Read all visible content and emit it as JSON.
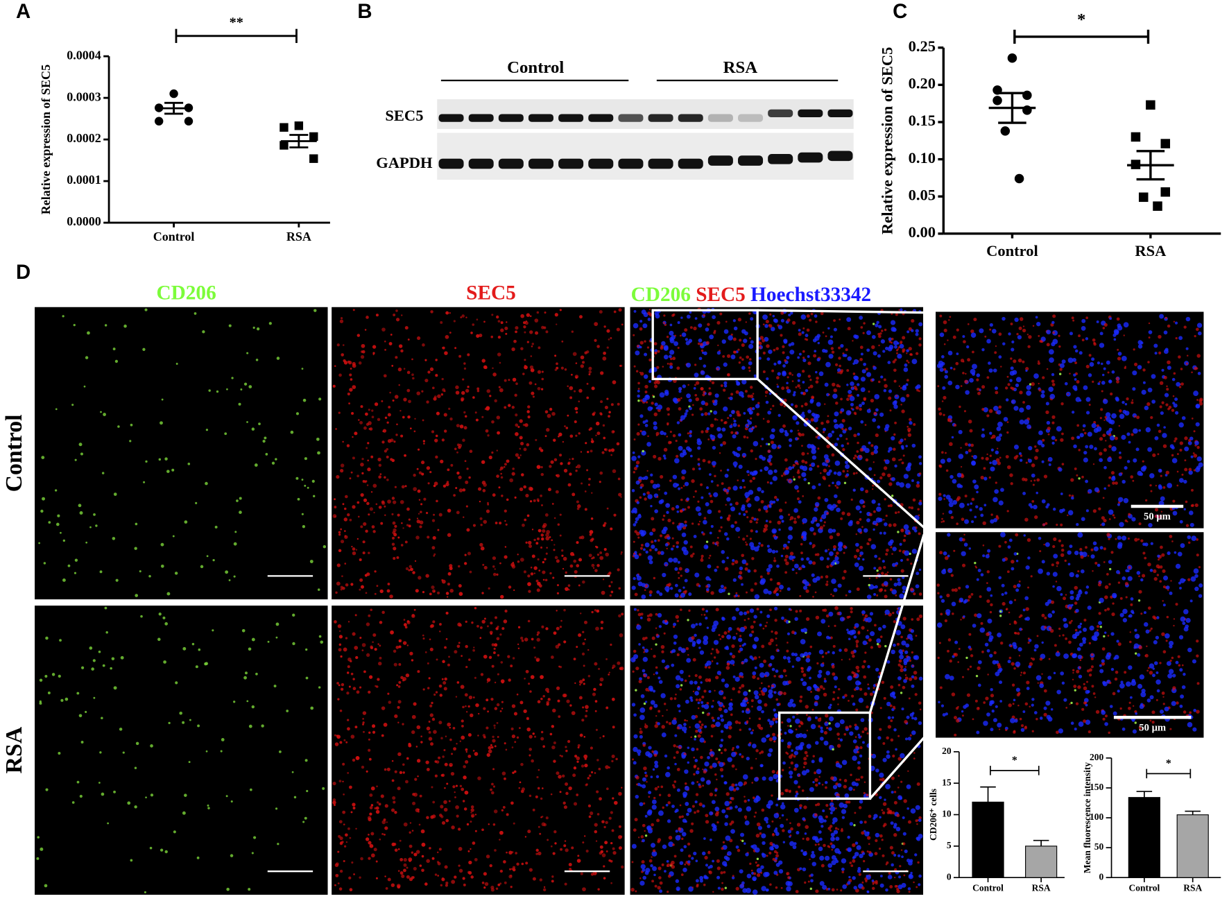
{
  "panel_labels": [
    "A",
    "B",
    "C",
    "D"
  ],
  "chart_data": [
    {
      "type": "dotplot",
      "categories": [
        "Control",
        "RSA"
      ],
      "y_label": "Relative expression of SEC5",
      "values": [
        [
          0.00031,
          0.000276,
          0.000276,
          0.000244,
          0.000244
        ],
        [
          0.000233,
          0.000229,
          0.000207,
          0.000186,
          0.000154
        ]
      ],
      "means": [
        0.000275,
        0.000196
      ],
      "errors": [
        1.3e-05,
        1.5e-05
      ],
      "markers": [
        "circle",
        "square"
      ],
      "color": "#000000",
      "ylim": [
        0,
        0.0004
      ],
      "yticks": [
        {
          "value": 0,
          "label": "0.0000"
        },
        0.0001,
        0.0002,
        0.0003,
        0.0004
      ],
      "significance": "**"
    },
    {
      "type": "dotplot",
      "categories": [
        "Control",
        "RSA"
      ],
      "y_label": "Relative expression of SEC5",
      "values": [
        [
          0.236,
          0.193,
          0.186,
          0.179,
          0.166,
          0.138,
          0.074
        ],
        [
          0.173,
          0.13,
          0.121,
          0.093,
          0.056,
          0.049,
          0.037
        ]
      ],
      "means": [
        0.169,
        0.092
      ],
      "errors": [
        0.02,
        0.019
      ],
      "markers": [
        "circle",
        "square"
      ],
      "color": "#000000",
      "ylim": [
        0,
        0.25
      ],
      "yticks": [
        {
          "value": 0,
          "label": "0.00"
        },
        0.05,
        {
          "value": 0.1,
          "label": "0.10"
        },
        0.15,
        {
          "value": 0.2,
          "label": "0.20"
        },
        0.25
      ],
      "significance": "*"
    },
    {
      "type": "bar",
      "categories": [
        "Control",
        "RSA"
      ],
      "y_label": "CD206⁺ cells",
      "values": [
        12,
        5
      ],
      "errors": [
        2.4,
        0.9
      ],
      "colors": [
        "#000000",
        "#a6a6a6"
      ],
      "ylim": [
        0,
        20
      ],
      "yticks": [
        0,
        5,
        10,
        15,
        20
      ],
      "significance": "*"
    },
    {
      "type": "bar",
      "categories": [
        "Control",
        "RSA"
      ],
      "y_label": "Mean fluorescence intensity",
      "values": [
        134,
        105
      ],
      "errors": [
        10,
        6
      ],
      "colors": [
        "#000000",
        "#a6a6a6"
      ],
      "ylim": [
        0,
        200
      ],
      "yticks": [
        0,
        50,
        100,
        150,
        200
      ],
      "significance": "*"
    }
  ],
  "blot": {
    "groups": [
      "Control",
      "RSA"
    ],
    "rows": [
      "SEC5",
      "GAPDH"
    ]
  },
  "images": {
    "channels": [
      "CD206",
      "SEC5",
      "Hoechst33342"
    ],
    "rows": [
      "Control",
      "RSA"
    ],
    "scale_bars": [
      "50 μm",
      "50 μm"
    ]
  }
}
